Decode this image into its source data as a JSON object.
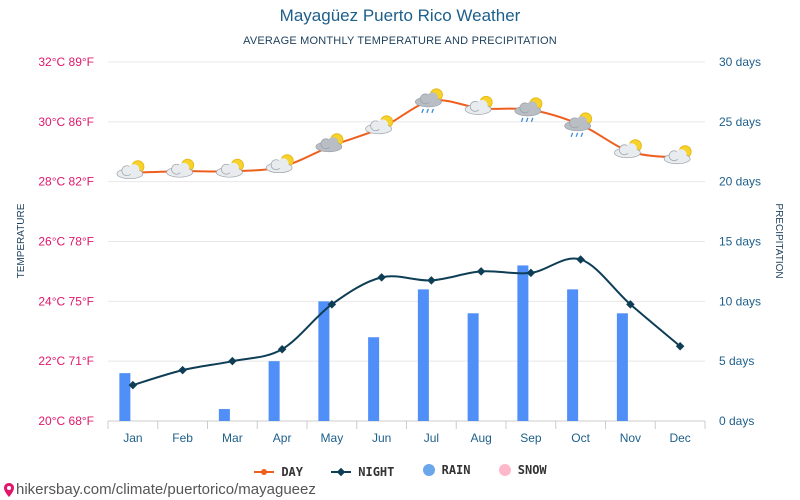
{
  "title": "Mayagüez Puerto Rico Weather",
  "subtitle": "AVERAGE MONTHLY TEMPERATURE AND PRECIPITATION",
  "source": "hikersbay.com/climate/puertorico/mayagueez",
  "colors": {
    "day": "#ee5f1f",
    "night": "#0e3e55",
    "rain": "#4f8ff7",
    "rain_legend": "#6aa6ea",
    "snow": "#ffb8c9",
    "left_axis": "#e0176b",
    "right_axis": "#1d5f8a",
    "grid": "#e8e8e8",
    "title": "#1d5f8a"
  },
  "legend": [
    {
      "label": "DAY",
      "key": "day",
      "shape": "line-dot"
    },
    {
      "label": "NIGHT",
      "key": "night",
      "shape": "line-diamond"
    },
    {
      "label": "RAIN",
      "key": "rain",
      "shape": "circle"
    },
    {
      "label": "SNOW",
      "key": "snow",
      "shape": "circle"
    }
  ],
  "chart_data": {
    "type": "line",
    "categories": [
      "Jan",
      "Feb",
      "Mar",
      "Apr",
      "May",
      "Jun",
      "Jul",
      "Aug",
      "Sep",
      "Oct",
      "Nov",
      "Dec"
    ],
    "left_axis": {
      "label": "TEMPERATURE",
      "range": [
        20,
        32
      ],
      "ticks": [
        {
          "value": 32,
          "label": "32°C 89°F"
        },
        {
          "value": 30,
          "label": "30°C 86°F"
        },
        {
          "value": 28,
          "label": "28°C 82°F"
        },
        {
          "value": 26,
          "label": "26°C 78°F"
        },
        {
          "value": 24,
          "label": "24°C 75°F"
        },
        {
          "value": 22,
          "label": "22°C 71°F"
        },
        {
          "value": 20,
          "label": "20°C 68°F"
        }
      ]
    },
    "right_axis": {
      "label": "PRECIPITATION",
      "range": [
        0,
        30
      ],
      "ticks": [
        {
          "value": 30,
          "label": "30 days"
        },
        {
          "value": 25,
          "label": "25 days"
        },
        {
          "value": 20,
          "label": "20 days"
        },
        {
          "value": 15,
          "label": "15 days"
        },
        {
          "value": 10,
          "label": "10 days"
        },
        {
          "value": 5,
          "label": "5 days"
        },
        {
          "value": 0,
          "label": "0 days"
        }
      ]
    },
    "grid": true,
    "legend_position": "bottom",
    "series": [
      {
        "name": "DAY",
        "axis": "left",
        "kind": "line",
        "values": [
          28.3,
          28.35,
          28.35,
          28.5,
          29.2,
          29.8,
          30.7,
          30.45,
          30.4,
          29.9,
          29.0,
          28.8
        ]
      },
      {
        "name": "NIGHT",
        "axis": "left",
        "kind": "line",
        "values": [
          21.2,
          21.7,
          22.0,
          22.4,
          23.9,
          24.8,
          24.7,
          25.0,
          24.95,
          25.4,
          23.9,
          22.5
        ]
      },
      {
        "name": "RAIN",
        "axis": "right",
        "kind": "bar",
        "values": [
          4,
          0,
          1,
          5,
          10,
          7,
          11,
          9,
          13,
          11,
          9,
          0
        ]
      },
      {
        "name": "SNOW",
        "axis": "right",
        "kind": "bar",
        "values": [
          0,
          0,
          0,
          0,
          0,
          0,
          0,
          0,
          0,
          0,
          0,
          0
        ]
      }
    ],
    "weather_icons": [
      "partly-cloudy-icon",
      "partly-cloudy-icon",
      "partly-cloudy-icon",
      "partly-cloudy-icon",
      "cloudy-sun-icon",
      "partly-cloudy-icon",
      "rain-sun-icon",
      "partly-cloudy-icon",
      "rain-sun-icon",
      "rain-sun-icon",
      "partly-cloudy-icon",
      "partly-cloudy-icon"
    ]
  }
}
